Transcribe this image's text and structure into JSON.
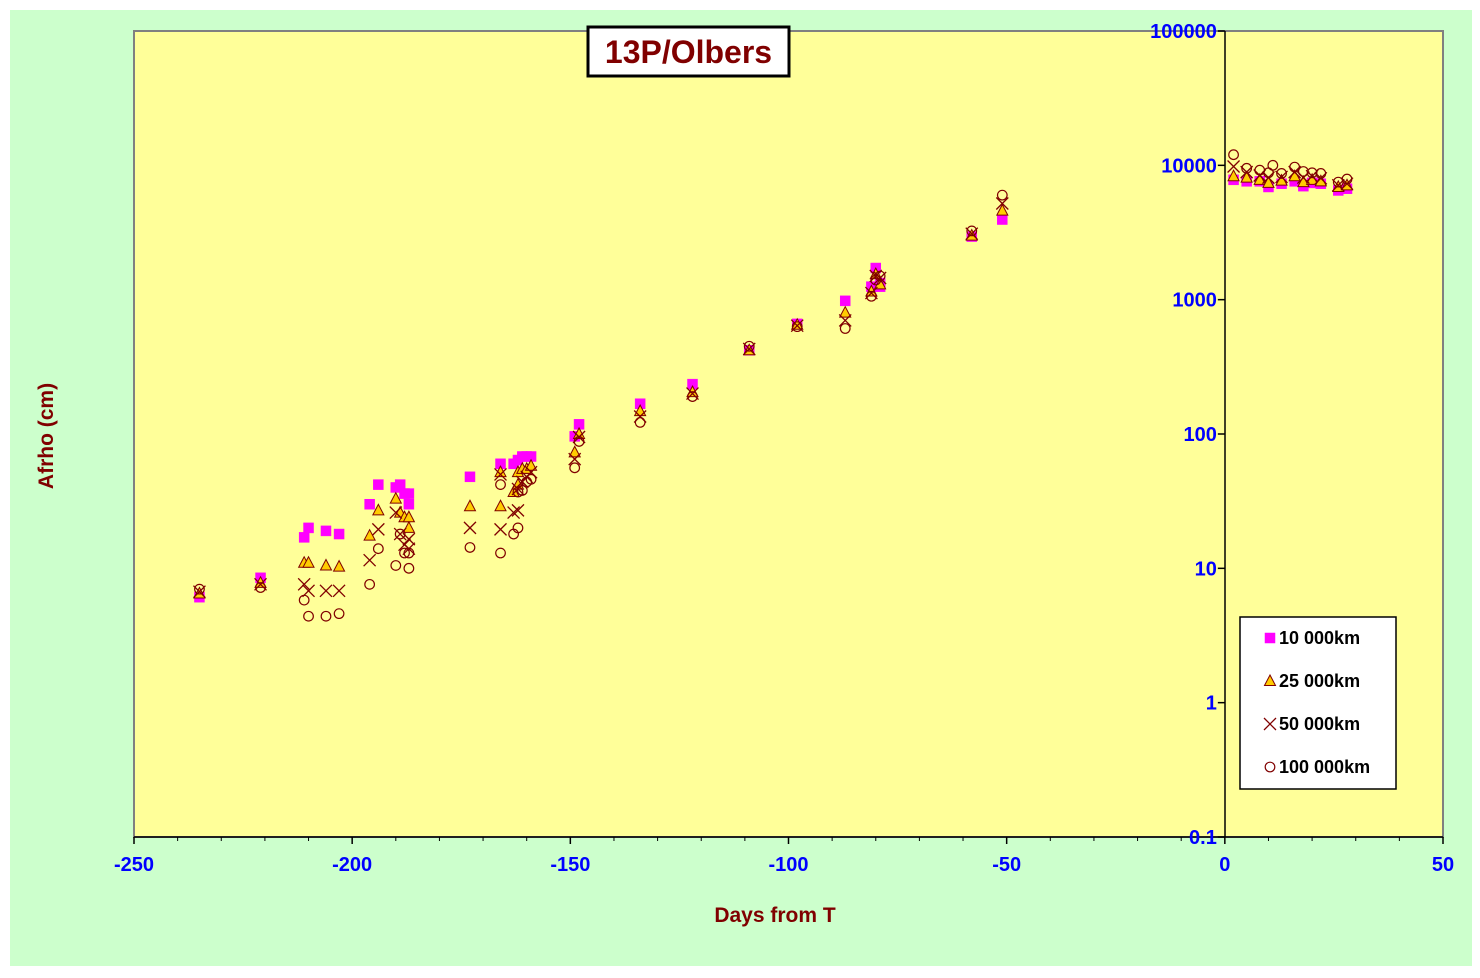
{
  "colors": {
    "outer_background": "#CCFFCC",
    "plot_background": "#FFFF99",
    "tick_label": "#0000FF",
    "axis_title": "#800000",
    "series_10000": "#FF00FF",
    "series_25000": "#FFCC00",
    "marker_edge": "#800000"
  },
  "chart_data": {
    "type": "scatter",
    "title": "13P/Olbers",
    "xlabel": "Days from T",
    "ylabel": "Afrho (cm)",
    "xlim": [
      -250,
      50
    ],
    "ylim": [
      0.1,
      100000
    ],
    "yscale": "log",
    "x_ticks": [
      "-250",
      "-200",
      "-150",
      "-100",
      "-50",
      "0",
      "50"
    ],
    "y_ticks": [
      "0.1",
      "1",
      "10",
      "100",
      "1000",
      "10000",
      "100000"
    ],
    "grid": false,
    "legend_position": "right",
    "series": [
      {
        "name": "10 000km",
        "marker": "square",
        "points": [
          [
            -235,
            6.1
          ],
          [
            -221,
            8.5
          ],
          [
            -211,
            17
          ],
          [
            -210,
            20
          ],
          [
            -206,
            19
          ],
          [
            -203,
            18
          ],
          [
            -196,
            30
          ],
          [
            -194,
            42
          ],
          [
            -190,
            40
          ],
          [
            -189,
            42
          ],
          [
            -188,
            36
          ],
          [
            -187,
            36
          ],
          [
            -187,
            30
          ],
          [
            -173,
            48
          ],
          [
            -166,
            60
          ],
          [
            -163,
            60
          ],
          [
            -162,
            64
          ],
          [
            -161,
            68
          ],
          [
            -160,
            68
          ],
          [
            -159,
            68
          ],
          [
            -149,
            96
          ],
          [
            -148,
            118
          ],
          [
            -134,
            168
          ],
          [
            -122,
            235
          ],
          [
            -109,
            420
          ],
          [
            -98,
            660
          ],
          [
            -87,
            980
          ],
          [
            -81,
            1250
          ],
          [
            -80,
            1720
          ],
          [
            -79,
            1330
          ],
          [
            -79,
            1250
          ],
          [
            -58,
            2950
          ],
          [
            -51,
            3950
          ],
          [
            2,
            7800
          ],
          [
            5,
            7600
          ],
          [
            8,
            7600
          ],
          [
            10,
            6900
          ],
          [
            13,
            7300
          ],
          [
            16,
            7600
          ],
          [
            18,
            7000
          ],
          [
            20,
            7400
          ],
          [
            22,
            7300
          ],
          [
            26,
            6500
          ],
          [
            28,
            6700
          ]
        ]
      },
      {
        "name": "25 000km",
        "marker": "triangle",
        "points": [
          [
            -235,
            6.5
          ],
          [
            -221,
            7.8
          ],
          [
            -211,
            11
          ],
          [
            -210,
            11
          ],
          [
            -206,
            10.5
          ],
          [
            -203,
            10.3
          ],
          [
            -196,
            17.5
          ],
          [
            -194,
            27
          ],
          [
            -190,
            33
          ],
          [
            -189,
            26
          ],
          [
            -188,
            24
          ],
          [
            -187,
            24
          ],
          [
            -187,
            20
          ],
          [
            -173,
            29
          ],
          [
            -166,
            52
          ],
          [
            -166,
            29
          ],
          [
            -163,
            37
          ],
          [
            -162,
            42
          ],
          [
            -162,
            52
          ],
          [
            -161,
            55
          ],
          [
            -160,
            55
          ],
          [
            -159,
            58
          ],
          [
            -149,
            73
          ],
          [
            -148,
            100
          ],
          [
            -134,
            148
          ],
          [
            -122,
            205
          ],
          [
            -109,
            420
          ],
          [
            -98,
            650
          ],
          [
            -87,
            800
          ],
          [
            -81,
            1150
          ],
          [
            -80,
            1550
          ],
          [
            -79,
            1300
          ],
          [
            -58,
            3000
          ],
          [
            -51,
            4600
          ],
          [
            2,
            8300
          ],
          [
            5,
            8100
          ],
          [
            8,
            7800
          ],
          [
            10,
            7400
          ],
          [
            13,
            7700
          ],
          [
            16,
            8300
          ],
          [
            18,
            7500
          ],
          [
            20,
            7800
          ],
          [
            22,
            7600
          ],
          [
            26,
            6900
          ],
          [
            28,
            7100
          ]
        ]
      },
      {
        "name": "50 000km",
        "marker": "x",
        "points": [
          [
            -235,
            6.7
          ],
          [
            -221,
            7.6
          ],
          [
            -211,
            7.6
          ],
          [
            -210,
            6.8
          ],
          [
            -206,
            6.8
          ],
          [
            -203,
            6.8
          ],
          [
            -196,
            11.5
          ],
          [
            -194,
            19.5
          ],
          [
            -190,
            26
          ],
          [
            -189,
            18
          ],
          [
            -188,
            15
          ],
          [
            -187,
            16.5
          ],
          [
            -187,
            14
          ],
          [
            -173,
            20
          ],
          [
            -166,
            50
          ],
          [
            -166,
            19.5
          ],
          [
            -163,
            26
          ],
          [
            -162,
            27
          ],
          [
            -162,
            39
          ],
          [
            -161,
            44
          ],
          [
            -160,
            48
          ],
          [
            -159,
            52
          ],
          [
            -149,
            65
          ],
          [
            -148,
            95
          ],
          [
            -134,
            135
          ],
          [
            -122,
            200
          ],
          [
            -109,
            430
          ],
          [
            -98,
            640
          ],
          [
            -87,
            700
          ],
          [
            -81,
            1120
          ],
          [
            -80,
            1500
          ],
          [
            -79,
            1450
          ],
          [
            -58,
            3100
          ],
          [
            -51,
            5200
          ],
          [
            2,
            9800
          ],
          [
            5,
            8900
          ],
          [
            8,
            8400
          ],
          [
            10,
            8100
          ],
          [
            13,
            8200
          ],
          [
            16,
            8900
          ],
          [
            18,
            8100
          ],
          [
            20,
            8300
          ],
          [
            22,
            8000
          ],
          [
            26,
            7100
          ],
          [
            28,
            7300
          ]
        ]
      },
      {
        "name": "100 000km",
        "marker": "circle",
        "points": [
          [
            -235,
            7
          ],
          [
            -221,
            7.2
          ],
          [
            -211,
            5.8
          ],
          [
            -210,
            4.4
          ],
          [
            -206,
            4.4
          ],
          [
            -203,
            4.6
          ],
          [
            -196,
            7.6
          ],
          [
            -194,
            14
          ],
          [
            -190,
            10.5
          ],
          [
            -189,
            18
          ],
          [
            -188,
            13
          ],
          [
            -187,
            13
          ],
          [
            -187,
            10
          ],
          [
            -173,
            14.3
          ],
          [
            -166,
            42
          ],
          [
            -166,
            13
          ],
          [
            -163,
            18
          ],
          [
            -162,
            20
          ],
          [
            -162,
            37
          ],
          [
            -161,
            38
          ],
          [
            -160,
            44
          ],
          [
            -159,
            46
          ],
          [
            -149,
            56
          ],
          [
            -148,
            88
          ],
          [
            -134,
            122
          ],
          [
            -122,
            190
          ],
          [
            -109,
            450
          ],
          [
            -98,
            630
          ],
          [
            -87,
            610
          ],
          [
            -81,
            1060
          ],
          [
            -80,
            1400
          ],
          [
            -79,
            1500
          ],
          [
            -58,
            3250
          ],
          [
            -51,
            6000
          ],
          [
            2,
            12000
          ],
          [
            5,
            9500
          ],
          [
            8,
            9200
          ],
          [
            10,
            8800
          ],
          [
            11,
            10000
          ],
          [
            13,
            8700
          ],
          [
            16,
            9700
          ],
          [
            18,
            9000
          ],
          [
            20,
            8800
          ],
          [
            22,
            8700
          ],
          [
            26,
            7500
          ],
          [
            28,
            7900
          ]
        ]
      }
    ]
  }
}
